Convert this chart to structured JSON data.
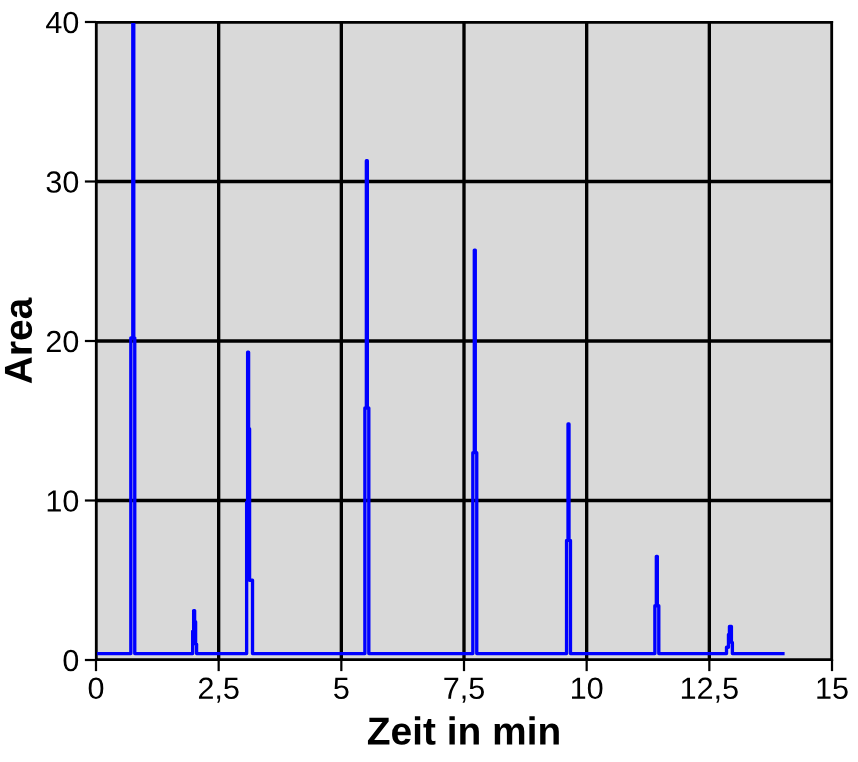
{
  "chart_data": {
    "type": "step",
    "xlabel": "Zeit in min",
    "ylabel": "Area",
    "x": [
      0,
      0.71,
      0.75,
      0.77,
      0.79,
      1.97,
      1.99,
      2.01,
      2.03,
      2.05,
      3.07,
      3.09,
      3.11,
      3.13,
      3.19,
      5.48,
      5.51,
      5.53,
      5.56,
      7.68,
      7.71,
      7.73,
      7.76,
      9.59,
      9.62,
      9.64,
      9.67,
      11.39,
      11.42,
      11.44,
      11.47,
      12.85,
      12.89,
      12.91,
      12.95,
      12.97,
      14.0
    ],
    "series": [
      {
        "color": "#0000ff",
        "values": [
          0.4,
          20.2,
          40,
          20.2,
          0.4,
          1.8,
          3.1,
          2.4,
          1.0,
          0.4,
          9.9,
          19.3,
          14.5,
          5.0,
          0.4,
          15.8,
          31.3,
          15.8,
          0.4,
          13.0,
          25.7,
          13.0,
          0.4,
          7.5,
          14.8,
          7.5,
          0.4,
          3.4,
          6.5,
          3.4,
          0.4,
          0.8,
          1.6,
          2.1,
          1.1,
          0.4,
          0.4
        ]
      }
    ],
    "xlim": [
      0,
      15
    ],
    "xticks": [
      0,
      {
        "value": 2.5,
        "label": "2,5"
      },
      5,
      {
        "value": 7.5,
        "label": "7,5"
      },
      10,
      {
        "value": 12.5,
        "label": "12,5"
      },
      15
    ],
    "ylim": [
      0,
      40
    ],
    "yticks": [
      0,
      10,
      20,
      30,
      40
    ],
    "grid": true
  }
}
